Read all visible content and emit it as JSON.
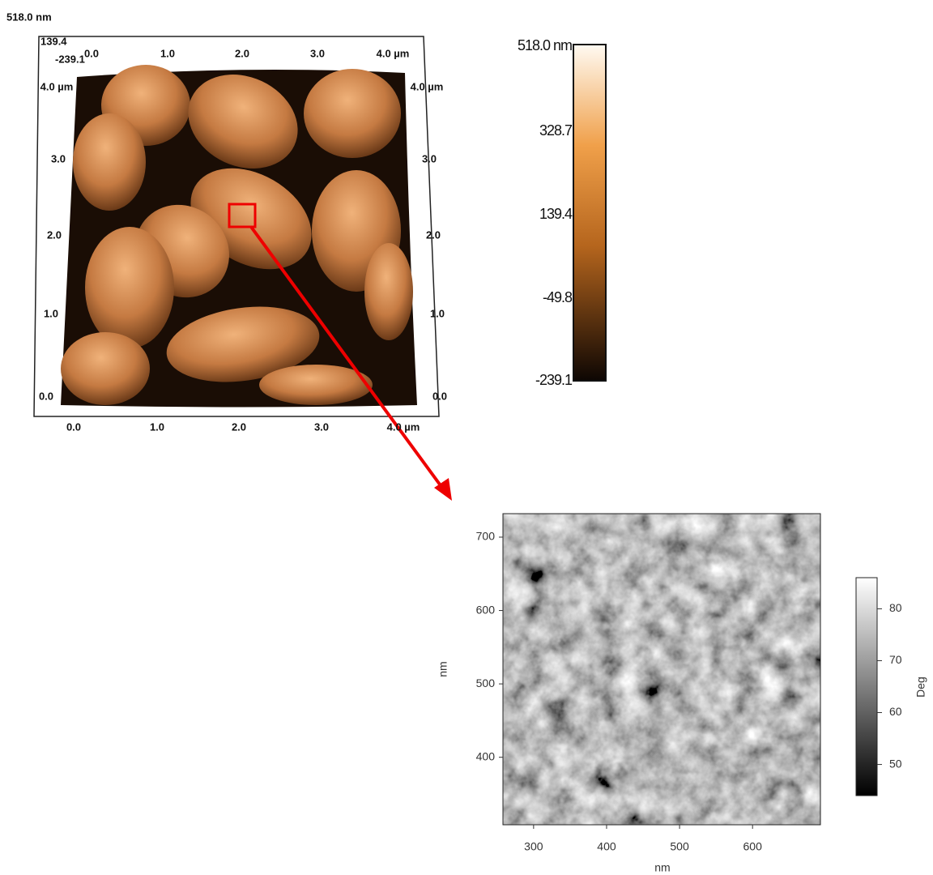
{
  "surface_plot": {
    "z_label": "518.0 nm",
    "corner_labels": [
      "139.4",
      "-239.1"
    ],
    "bottom_x_ticks": [
      "0.0",
      "1.0",
      "2.0",
      "3.0",
      "4.0 µm"
    ],
    "top_x_ticks": [
      "0.0",
      "1.0",
      "2.0",
      "3.0",
      "4.0 µm"
    ],
    "left_y_ticks": [
      "0.0",
      "1.0",
      "2.0",
      "3.0",
      "4.0 µm"
    ],
    "right_y_ticks": [
      "0.0",
      "1.0",
      "2.0",
      "3.0",
      "4.0 µm"
    ]
  },
  "height_colorbar": {
    "ticks": [
      "518.0 nm",
      "328.7",
      "139.4",
      "-49.8",
      "-239.1"
    ]
  },
  "phase_image": {
    "xlabel": "nm",
    "ylabel": "nm",
    "xlim": [
      258,
      693
    ],
    "ylim": [
      308,
      732
    ],
    "xticks": [
      300,
      400,
      500,
      600
    ],
    "yticks": [
      400,
      500,
      600,
      700
    ],
    "colorbar": {
      "label": "Deg",
      "lim": [
        44,
        86
      ],
      "ticks": [
        50,
        60,
        70,
        80
      ]
    }
  }
}
